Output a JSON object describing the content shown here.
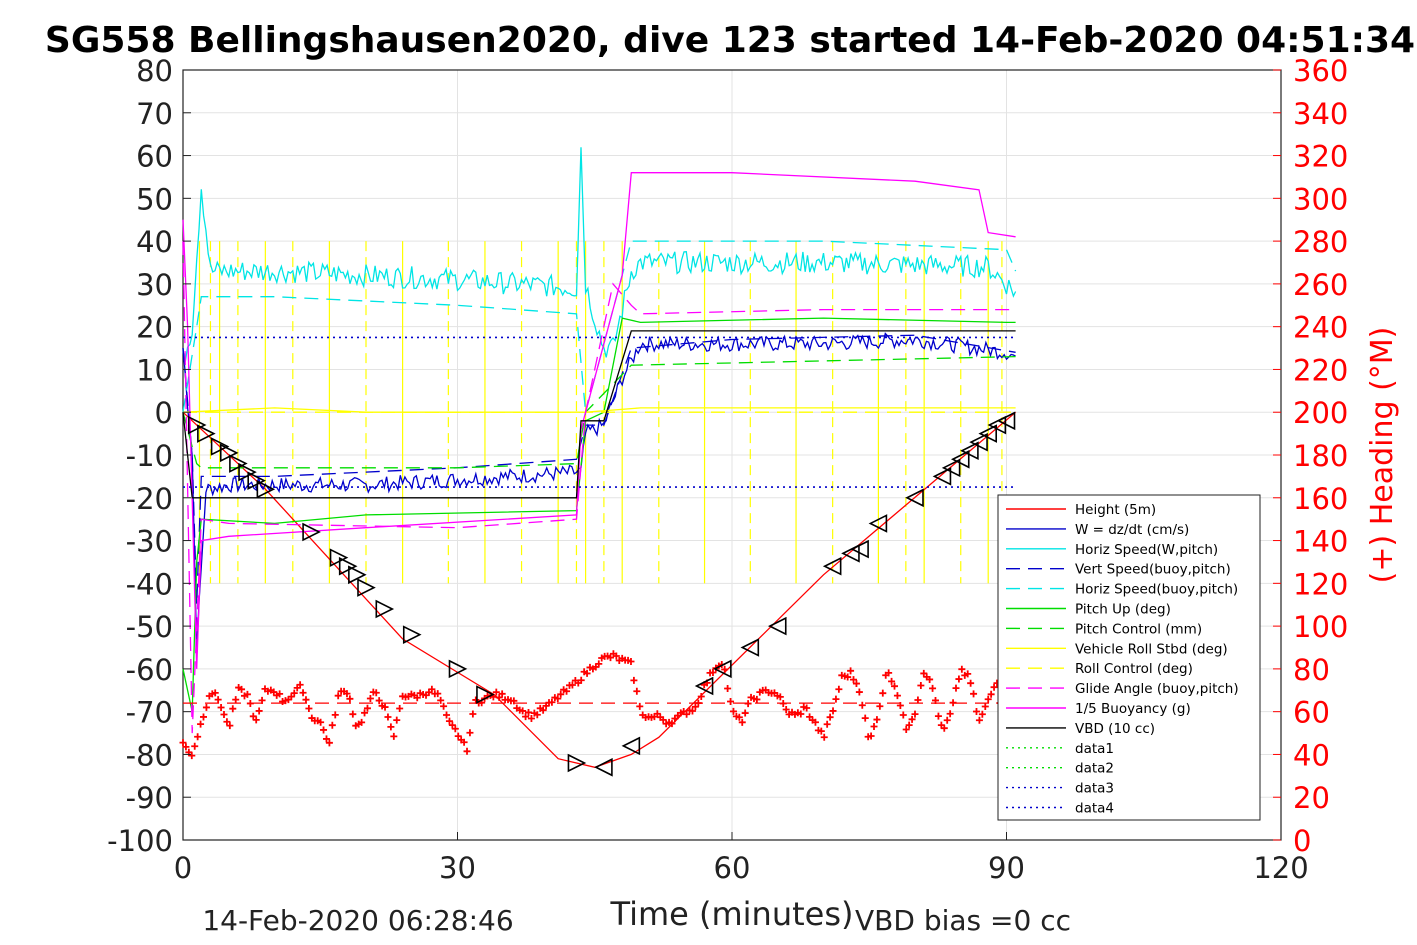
{
  "chart_data": {
    "type": "line",
    "title": "SG558 Bellingshausen2020, dive 123 started 14-Feb-2020 04:51:34",
    "xlabel": "Time (minutes)",
    "ylabel_right": "(+) Heading (°M)",
    "xlim": [
      0,
      120
    ],
    "ylim": [
      -100,
      80
    ],
    "ylim_right": [
      0,
      360
    ],
    "x_ticks": [
      "0",
      "30",
      "60",
      "90",
      "120"
    ],
    "y_ticks": [
      "80",
      "70",
      "60",
      "50",
      "40",
      "30",
      "20",
      "10",
      "0",
      "-10",
      "-20",
      "-30",
      "-40",
      "-50",
      "-60",
      "-70",
      "-80",
      "-90",
      "-100"
    ],
    "y_ticks_right": [
      "360",
      "340",
      "320",
      "300",
      "280",
      "260",
      "240",
      "220",
      "200",
      "180",
      "160",
      "140",
      "120",
      "100",
      "80",
      "60",
      "40",
      "20",
      "0"
    ],
    "footer_left": "14-Feb-2020 06:28:46",
    "footer_right": "VBD bias =0 cc",
    "legend_position": "bottom-right",
    "grid": true,
    "colors": {
      "heading": "#ff0000",
      "red": "#ff0000",
      "blue": "#0000cc",
      "cyan": "#00e5e5",
      "green": "#00dd00",
      "yellow": "#ffff00",
      "magenta": "#ff00ff",
      "black": "#000000"
    },
    "legend": [
      {
        "label": "Height (5m)",
        "color": "#ff0000",
        "style": "solid"
      },
      {
        "label": "W = dz/dt (cm/s)",
        "color": "#0000cc",
        "style": "solid"
      },
      {
        "label": "Horiz Speed(W,pitch)",
        "color": "#00e5e5",
        "style": "solid"
      },
      {
        "label": "Vert Speed(buoy,pitch)",
        "color": "#0000cc",
        "style": "dashed"
      },
      {
        "label": "Horiz Speed(buoy,pitch)",
        "color": "#00e5e5",
        "style": "dashed"
      },
      {
        "label": "Pitch Up (deg)",
        "color": "#00dd00",
        "style": "solid"
      },
      {
        "label": "Pitch Control (mm)",
        "color": "#00dd00",
        "style": "dashed"
      },
      {
        "label": "Vehicle Roll Stbd (deg)",
        "color": "#ffff00",
        "style": "solid"
      },
      {
        "label": "Roll Control (deg)",
        "color": "#ffff00",
        "style": "dashed"
      },
      {
        "label": "Glide Angle (buoy,pitch)",
        "color": "#ff00ff",
        "style": "dashed"
      },
      {
        "label": "1/5 Buoyancy (g)",
        "color": "#ff00ff",
        "style": "solid"
      },
      {
        "label": "VBD (10 cc)",
        "color": "#000000",
        "style": "solid"
      },
      {
        "label": "data1",
        "color": "#00dd00",
        "style": "dotted"
      },
      {
        "label": "data2",
        "color": "#00dd00",
        "style": "dotted"
      },
      {
        "label": "data3",
        "color": "#0000cc",
        "style": "dotted"
      },
      {
        "label": "data4",
        "color": "#0000cc",
        "style": "dotted"
      }
    ],
    "series": [
      {
        "name": "Height (5m)",
        "color": "#ff0000",
        "style": "solid",
        "x": [
          0,
          1,
          2,
          9,
          24,
          34,
          41,
          45,
          49,
          52,
          70,
          91
        ],
        "y": [
          0,
          -2,
          -4,
          -18,
          -53,
          -66,
          -81,
          -83,
          -80,
          -76,
          -38,
          0
        ]
      },
      {
        "name": "W = dz/dt (cm/s)",
        "color": "#0000cc",
        "style": "solid",
        "noise": 1.8,
        "x": [
          0,
          1,
          1.5,
          2.5,
          5,
          20,
          43.5,
          44,
          46,
          48,
          50,
          70,
          80,
          90,
          91
        ],
        "y": [
          15,
          -10,
          -55,
          -18,
          -17,
          -17,
          -14,
          -5,
          -3,
          8,
          16,
          16,
          17,
          14,
          13
        ]
      },
      {
        "name": "Horiz Speed(W,pitch)",
        "color": "#00e5e5",
        "style": "solid",
        "noise": 2.6,
        "x": [
          0,
          1,
          2,
          3,
          10,
          30,
          43,
          43.5,
          44,
          45,
          46,
          47,
          49,
          50,
          70,
          88,
          91
        ],
        "y": [
          12,
          20,
          53,
          33,
          33,
          31,
          29,
          62,
          30,
          22,
          15,
          15,
          33,
          35,
          35,
          34,
          28
        ]
      },
      {
        "name": "Vert Speed(buoy,pitch)",
        "color": "#0000cc",
        "style": "dashed",
        "x": [
          0,
          1,
          1.5,
          2,
          10,
          30,
          43,
          44,
          46,
          49,
          60,
          80,
          91
        ],
        "y": [
          15,
          -10,
          -45,
          -15,
          -15,
          -13,
          -11,
          -3,
          -3,
          15,
          17,
          18,
          14
        ]
      },
      {
        "name": "Horiz Speed(buoy,pitch)",
        "color": "#00e5e5",
        "style": "dashed",
        "x": [
          0,
          1.5,
          2,
          10,
          30,
          43,
          44,
          49,
          70,
          90,
          91
        ],
        "y": [
          0,
          20,
          27,
          27,
          25,
          23,
          0,
          40,
          40,
          38,
          33
        ]
      },
      {
        "name": "Pitch Up (deg)",
        "color": "#00dd00",
        "style": "solid",
        "x": [
          0,
          1,
          1.5,
          2,
          10,
          20,
          43,
          44,
          46,
          48,
          50,
          70,
          90,
          91
        ],
        "y": [
          -60,
          -70,
          -35,
          -25,
          -26,
          -24,
          -23,
          -2,
          0,
          22,
          21,
          22,
          21,
          21
        ]
      },
      {
        "name": "Pitch Control (mm)",
        "color": "#00dd00",
        "style": "dashed",
        "x": [
          0,
          1.5,
          2,
          30,
          43,
          44,
          49,
          70,
          91
        ],
        "y": [
          0,
          -12,
          -13,
          -13,
          -12,
          0,
          11,
          12,
          13
        ]
      },
      {
        "name": "Vehicle Roll Stbd (deg)",
        "color": "#ffff00",
        "style": "solid",
        "x": [
          0,
          10,
          20,
          30,
          43,
          44,
          50,
          70,
          91
        ],
        "y": [
          0,
          1,
          0,
          0,
          0,
          0,
          1,
          1,
          1
        ]
      },
      {
        "name": "Roll Control (deg)",
        "color": "#ffff00",
        "style": "dashed",
        "x": [
          0,
          10,
          30,
          43,
          44,
          70,
          91
        ],
        "y": [
          0,
          0,
          0,
          0,
          0,
          0,
          0
        ]
      },
      {
        "name": "Glide Angle (buoy,pitch)",
        "color": "#ff00ff",
        "style": "dashed",
        "x": [
          0,
          1,
          2,
          5,
          30,
          43,
          44,
          47,
          49,
          50,
          70,
          90,
          91
        ],
        "y": [
          40,
          -75,
          -25,
          -26,
          -27,
          -25,
          0,
          30,
          25,
          23,
          24,
          24,
          24
        ]
      },
      {
        "name": "1/5 Buoyancy (g)",
        "color": "#ff00ff",
        "style": "solid",
        "x": [
          0,
          0.5,
          1.5,
          2,
          5,
          20,
          43,
          43.5,
          48,
          49,
          60,
          80,
          87,
          88,
          91
        ],
        "y": [
          45,
          20,
          -60,
          -30,
          -29,
          -27,
          -24,
          -4,
          32,
          56,
          56,
          54,
          52,
          42,
          41
        ]
      },
      {
        "name": "VBD (10 cc)",
        "color": "#000000",
        "style": "solid",
        "x": [
          0,
          1,
          1.5,
          43,
          43.5,
          46,
          49,
          50,
          91
        ],
        "y": [
          0,
          -20,
          -20,
          -20,
          -2,
          -2,
          19,
          19,
          19
        ]
      },
      {
        "name": "data3",
        "color": "#0000cc",
        "style": "dotted",
        "x": [
          0,
          91
        ],
        "y": [
          17.5,
          17.5
        ]
      },
      {
        "name": "data4",
        "color": "#0000cc",
        "style": "dotted",
        "x": [
          0,
          91
        ],
        "y": [
          -17.5,
          -17.5
        ]
      },
      {
        "name": "heading dashed",
        "color": "#ff0000",
        "style": "dashed",
        "x": [
          0,
          91
        ],
        "y": [
          -68,
          -68
        ]
      }
    ],
    "yellow_spikes_x": [
      1.8,
      3,
      4,
      6,
      9,
      12,
      16,
      20,
      24,
      29,
      33,
      37,
      41,
      43,
      44,
      46,
      48,
      52,
      57,
      62,
      67,
      71,
      76,
      79,
      81,
      85,
      88,
      89.5
    ],
    "heading": {
      "name": "(+) Heading (°M)",
      "color": "#ff0000",
      "x": [
        0,
        1,
        2,
        3,
        4,
        5,
        6,
        7,
        8,
        9,
        10,
        11,
        12,
        13,
        14,
        15,
        16,
        17,
        18,
        19,
        20,
        21,
        22,
        23,
        24,
        25,
        26,
        27,
        28,
        29,
        30,
        31,
        32,
        33,
        34,
        35,
        36,
        37,
        38,
        39,
        40,
        41,
        42,
        43,
        44,
        45,
        46,
        47,
        48,
        49,
        50,
        51,
        52,
        53,
        54,
        55,
        56,
        57,
        58,
        59,
        60,
        61,
        62,
        63,
        64,
        65,
        66,
        67,
        68,
        69,
        70,
        71,
        72,
        73,
        74,
        75,
        76,
        77,
        78,
        79,
        80,
        81,
        82,
        83,
        84,
        85,
        86,
        87,
        88,
        89,
        90,
        91
      ],
      "y": [
        45,
        40,
        55,
        70,
        65,
        52,
        70,
        68,
        55,
        70,
        70,
        65,
        68,
        72,
        58,
        55,
        45,
        68,
        70,
        52,
        60,
        70,
        62,
        48,
        68,
        67,
        68,
        70,
        67,
        55,
        50,
        42,
        65,
        66,
        68,
        67,
        66,
        60,
        58,
        60,
        63,
        67,
        70,
        74,
        78,
        82,
        85,
        86,
        84,
        82,
        60,
        57,
        58,
        55,
        57,
        60,
        62,
        72,
        80,
        84,
        60,
        55,
        65,
        68,
        70,
        68,
        60,
        58,
        62,
        55,
        48,
        60,
        76,
        78,
        70,
        45,
        60,
        80,
        70,
        52,
        60,
        80,
        70,
        50,
        60,
        80,
        75,
        55,
        65,
        75,
        40,
        35
      ]
    },
    "triangle_markers": {
      "x": [
        1.5,
        2.5,
        4,
        5,
        6,
        7,
        8,
        9,
        14,
        17,
        18,
        19,
        20,
        22,
        25,
        30,
        33,
        43,
        46,
        49,
        57,
        59,
        62,
        65,
        71,
        73,
        74,
        76,
        80,
        83,
        84,
        85,
        86,
        87,
        88,
        89,
        90
      ],
      "y": [
        -3,
        -5,
        -8,
        -9.5,
        -12,
        -14,
        -16,
        -18,
        -28,
        -34,
        -36,
        -38,
        -41,
        -46,
        -52,
        -60,
        -66,
        -82,
        -83,
        -78,
        -64,
        -60,
        -55,
        -50,
        -36,
        -33,
        -32,
        -26,
        -20,
        -15,
        -13,
        -11,
        -9,
        -7,
        -5,
        -3,
        -2
      ]
    }
  }
}
